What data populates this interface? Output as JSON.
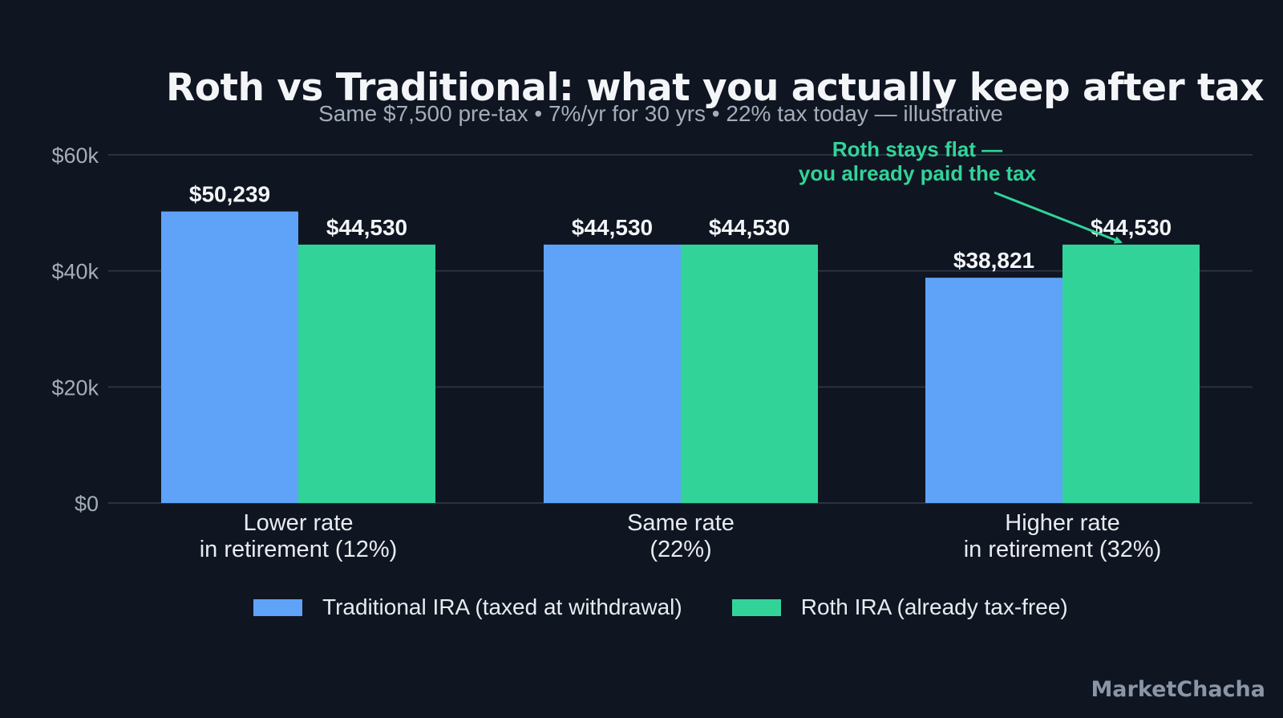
{
  "title": "Roth vs Traditional: what you actually keep after tax",
  "subtitle": "Same $7,500 pre-tax • 7%/yr for 30 yrs • 22% tax today — illustrative",
  "brand": "MarketChacha",
  "colors": {
    "background": "#0f1521",
    "traditional": "#5ea3f7",
    "roth": "#32d399",
    "grid": "#2a3342",
    "axis_text": "#a4adba",
    "label_text": "#f3f5f8"
  },
  "chart_data": {
    "type": "bar",
    "title": "Roth vs Traditional: what you actually keep after tax",
    "subtitle": "Same $7,500 pre-tax • 7%/yr for 30 yrs • 22% tax today — illustrative",
    "categories": [
      [
        "Lower rate",
        "in retirement (12%)"
      ],
      [
        "Same rate",
        "(22%)"
      ],
      [
        "Higher rate",
        "in retirement (32%)"
      ]
    ],
    "series": [
      {
        "name": "Traditional IRA (taxed at withdrawal)",
        "values": [
          50239,
          44530,
          38821
        ],
        "labels": [
          "$50,239",
          "$44,530",
          "$38,821"
        ],
        "color": "#5ea3f7"
      },
      {
        "name": "Roth IRA (already tax-free)",
        "values": [
          44530,
          44530,
          44530
        ],
        "labels": [
          "$44,530",
          "$44,530",
          "$44,530"
        ],
        "color": "#32d399"
      }
    ],
    "ylim": [
      0,
      60000
    ],
    "yticks": [
      0,
      20000,
      40000,
      60000
    ],
    "ytick_labels": [
      "$0",
      "$20k",
      "$40k",
      "$60k"
    ],
    "grid": true,
    "legend_position": "bottom",
    "annotation": {
      "text": [
        "Roth stays flat —",
        "you already paid the tax"
      ],
      "points_to": {
        "category_index": 2,
        "series_index": 1
      },
      "color": "#32d399"
    }
  }
}
